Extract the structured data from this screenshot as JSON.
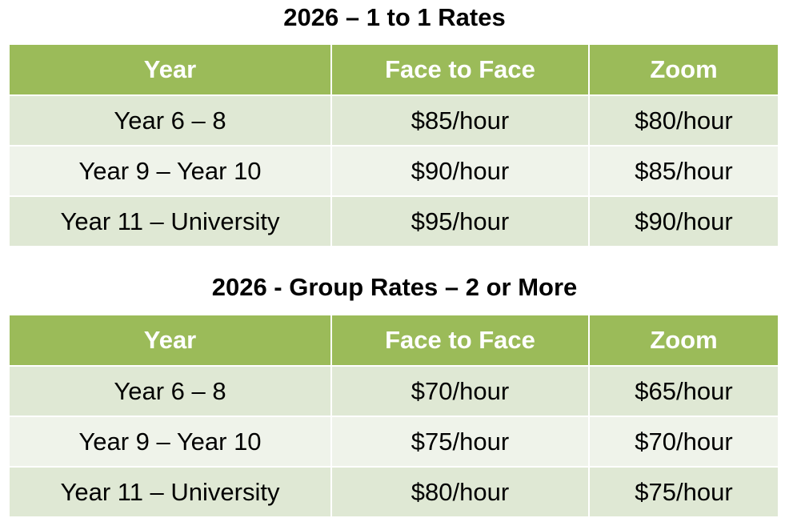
{
  "sections": [
    {
      "title": "2026 – 1 to 1 Rates",
      "headers": [
        "Year",
        "Face to Face",
        "Zoom"
      ],
      "rows": [
        [
          "Year 6 – 8",
          "$85/hour",
          "$80/hour"
        ],
        [
          "Year 9 – Year 10",
          "$90/hour",
          "$85/hour"
        ],
        [
          "Year 11 – University",
          "$95/hour",
          "$90/hour"
        ]
      ]
    },
    {
      "title": "2026 - Group Rates – 2 or More",
      "headers": [
        "Year",
        "Face to Face",
        "Zoom"
      ],
      "rows": [
        [
          "Year 6 – 8",
          "$70/hour",
          "$65/hour"
        ],
        [
          "Year 9 – Year 10",
          "$75/hour",
          "$70/hour"
        ],
        [
          "Year 11 – University",
          "$80/hour",
          "$75/hour"
        ]
      ]
    }
  ],
  "colors": {
    "header_bg": "#9bbb59",
    "header_text": "#ffffff",
    "row_band_dark": "#dfe8d4",
    "row_band_light": "#eff3ea"
  }
}
